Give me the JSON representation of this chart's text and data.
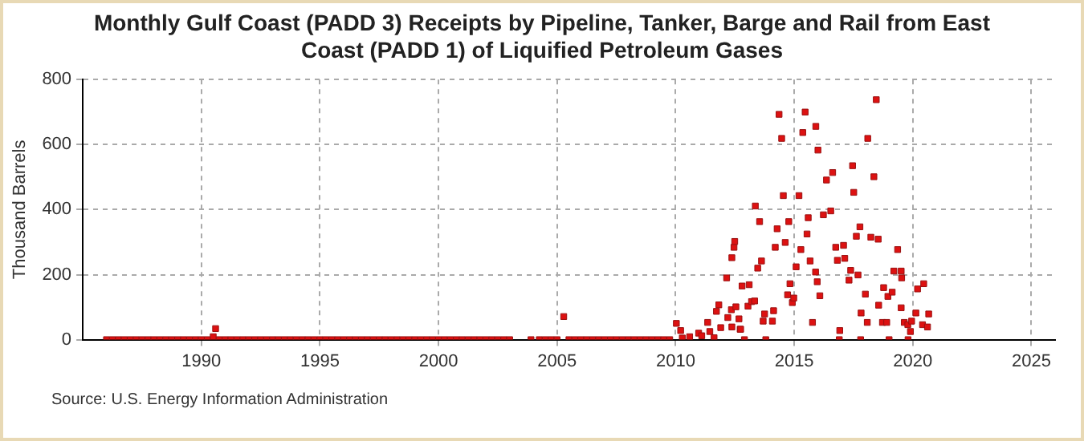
{
  "chart_data": {
    "type": "scatter",
    "title": "Monthly Gulf Coast (PADD 3) Receipts by Pipeline, Tanker, Barge and Rail from East Coast (PADD 1) of Liquified Petroleum Gases",
    "ylabel": "Thousand Barrels",
    "annotations": [
      "Source: U.S. Energy Information Administration"
    ],
    "xlim": [
      1985,
      2026
    ],
    "xticks": [
      1990,
      1995,
      2000,
      2005,
      2010,
      2015,
      2020,
      2025
    ],
    "ylim": [
      0,
      800
    ],
    "yticks": [
      0,
      200,
      400,
      600,
      800
    ],
    "grid": true,
    "legend": false,
    "marker": "square",
    "series": [
      {
        "color": "#dd1111",
        "x": [
          1986.0,
          1986.25,
          1986.5,
          1986.75,
          1987.0,
          1987.25,
          1987.5,
          1987.75,
          1988.0,
          1988.25,
          1988.5,
          1988.75,
          1989.0,
          1989.25,
          1989.5,
          1989.75,
          1990.0,
          1990.25,
          1990.5,
          1990.6,
          1990.75,
          1991.0,
          1991.25,
          1991.5,
          1991.75,
          1992.0,
          1992.25,
          1992.5,
          1992.75,
          1993.0,
          1993.25,
          1993.5,
          1993.75,
          1994.0,
          1994.25,
          1994.5,
          1994.75,
          1995.0,
          1995.25,
          1995.5,
          1995.75,
          1996.0,
          1996.25,
          1996.5,
          1996.75,
          1997.0,
          1997.25,
          1997.5,
          1997.75,
          1998.0,
          1998.25,
          1998.5,
          1998.75,
          1999.0,
          1999.25,
          1999.5,
          1999.75,
          2000.0,
          2000.25,
          2000.5,
          2000.75,
          2001.0,
          2001.25,
          2001.5,
          2001.75,
          2002.0,
          2002.25,
          2002.5,
          2002.75,
          2003.0,
          2003.9,
          2004.25,
          2004.5,
          2004.75,
          2005.0,
          2005.28,
          2005.5,
          2005.75,
          2006.0,
          2006.25,
          2006.5,
          2006.75,
          2007.0,
          2007.25,
          2007.5,
          2007.75,
          2008.0,
          2008.25,
          2008.5,
          2008.75,
          2009.0,
          2009.25,
          2009.5,
          2009.75,
          2010.03,
          2010.21,
          2010.28,
          2010.59,
          2010.97,
          2011.1,
          2011.35,
          2011.44,
          2011.62,
          2011.72,
          2011.82,
          2011.9,
          2012.15,
          2012.2,
          2012.35,
          2012.37,
          2012.37,
          2012.46,
          2012.49,
          2012.54,
          2012.67,
          2012.72,
          2012.74,
          2012.8,
          2012.9,
          2013.05,
          2013.1,
          2013.2,
          2013.33,
          2013.36,
          2013.46,
          2013.54,
          2013.62,
          2013.69,
          2013.75,
          2013.8,
          2014.08,
          2014.13,
          2014.2,
          2014.28,
          2014.36,
          2014.47,
          2014.54,
          2014.62,
          2014.72,
          2014.77,
          2014.82,
          2014.92,
          2014.98,
          2015.08,
          2015.2,
          2015.28,
          2015.36,
          2015.46,
          2015.54,
          2015.59,
          2015.67,
          2015.77,
          2015.9,
          2015.91,
          2015.97,
          2016.0,
          2016.08,
          2016.23,
          2016.36,
          2016.54,
          2016.62,
          2016.75,
          2016.82,
          2016.9,
          2016.92,
          2017.08,
          2017.13,
          2017.31,
          2017.38,
          2017.46,
          2017.51,
          2017.62,
          2017.69,
          2017.77,
          2017.8,
          2017.82,
          2018.0,
          2018.08,
          2018.1,
          2018.23,
          2018.36,
          2018.46,
          2018.54,
          2018.56,
          2018.72,
          2018.77,
          2018.9,
          2018.95,
          2019.0,
          2019.13,
          2019.2,
          2019.36,
          2019.51,
          2019.51,
          2019.53,
          2019.64,
          2019.79,
          2019.8,
          2019.9,
          2019.95,
          2020.13,
          2020.2,
          2020.41,
          2020.46,
          2020.62,
          2020.67
        ],
        "values": [
          0,
          0,
          0,
          0,
          0,
          0,
          0,
          0,
          0,
          0,
          0,
          0,
          0,
          0,
          0,
          0,
          0,
          0,
          9,
          34,
          0,
          0,
          0,
          0,
          0,
          0,
          0,
          0,
          0,
          0,
          0,
          0,
          0,
          0,
          0,
          0,
          0,
          0,
          0,
          0,
          0,
          0,
          0,
          0,
          0,
          0,
          0,
          0,
          0,
          0,
          0,
          0,
          0,
          0,
          0,
          0,
          0,
          0,
          0,
          0,
          0,
          0,
          0,
          0,
          0,
          0,
          0,
          0,
          0,
          0,
          0,
          0,
          0,
          0,
          0,
          71,
          0,
          0,
          0,
          0,
          0,
          0,
          0,
          0,
          0,
          0,
          0,
          0,
          0,
          0,
          0,
          0,
          0,
          0,
          50,
          28,
          5,
          9,
          20,
          12,
          53,
          25,
          6,
          87,
          107,
          37,
          190,
          68,
          92,
          252,
          39,
          284,
          302,
          101,
          64,
          32,
          32,
          165,
          0,
          103,
          169,
          117,
          119,
          411,
          220,
          363,
          242,
          57,
          79,
          0,
          57,
          89,
          284,
          341,
          693,
          619,
          443,
          299,
          138,
          363,
          172,
          114,
          128,
          224,
          443,
          277,
          637,
          700,
          325,
          375,
          242,
          53,
          208,
          656,
          178,
          583,
          135,
          384,
          491,
          396,
          514,
          284,
          244,
          0,
          28,
          290,
          250,
          183,
          213,
          535,
          453,
          318,
          199,
          347,
          0,
          82,
          140,
          53,
          619,
          315,
          501,
          738,
          309,
          106,
          53,
          160,
          53,
          133,
          0,
          146,
          211,
          277,
          98,
          211,
          190,
          53,
          46,
          0,
          25,
          57,
          82,
          156,
          46,
          172,
          39,
          79
        ]
      }
    ]
  }
}
